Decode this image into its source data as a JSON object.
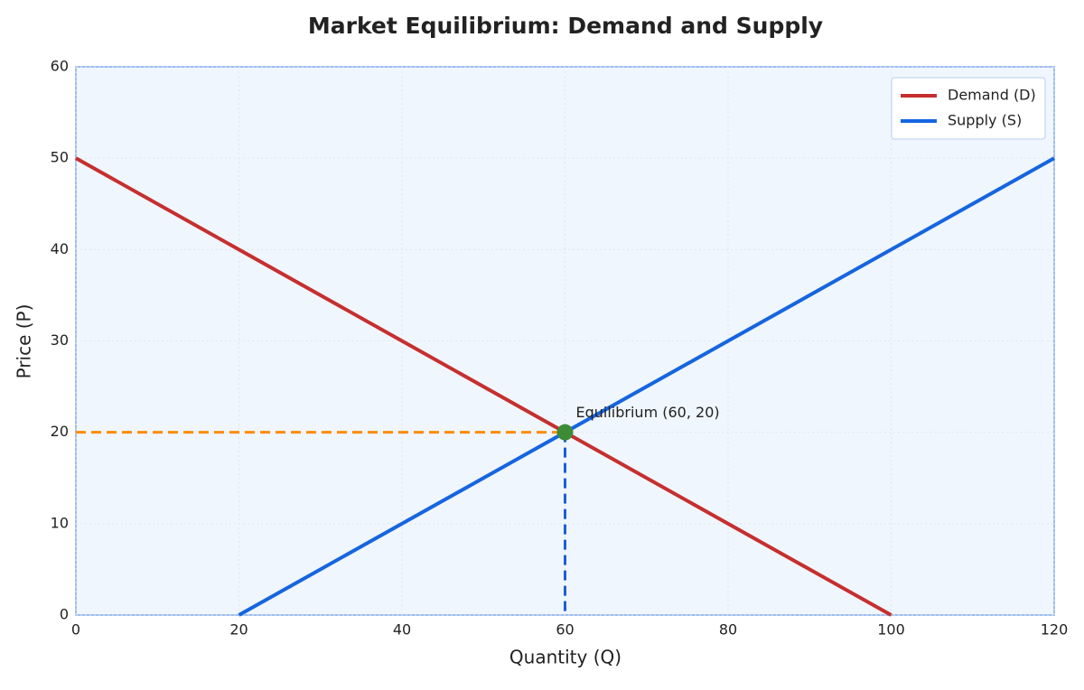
{
  "chart_data": {
    "type": "line",
    "title": "Market Equilibrium: Demand and Supply",
    "x_label": "Quantity (Q)",
    "y_label": "Price (P)",
    "xlim": [
      0,
      120
    ],
    "ylim": [
      0,
      60
    ],
    "xticks": [
      0,
      20,
      40,
      60,
      80,
      100,
      120
    ],
    "yticks": [
      0,
      10,
      20,
      30,
      40,
      50,
      60
    ],
    "grid": true,
    "legend": "upper right",
    "series": [
      {
        "name": "Demand (D)",
        "color": "#c62f2f",
        "x": [
          0,
          100
        ],
        "values": [
          50,
          0
        ]
      },
      {
        "name": "Supply (S)",
        "color": "#1565e0",
        "x": [
          20,
          120
        ],
        "values": [
          0,
          50
        ]
      }
    ],
    "equilibrium": {
      "x": 60,
      "y": 20,
      "label": "Equilibrium (60, 20)",
      "color": "#3d8b37",
      "price_guide_color": "#ff8c00",
      "quantity_guide_color": "#1a5fd6"
    }
  }
}
